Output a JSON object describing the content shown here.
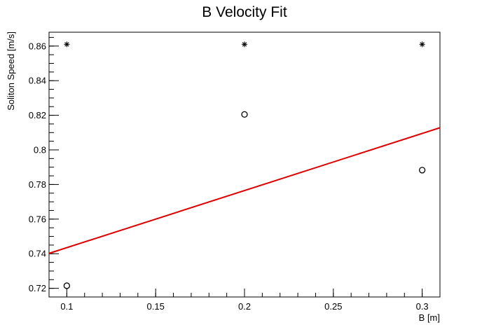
{
  "chart_data": {
    "type": "scatter",
    "title": "B Velocity Fit",
    "xlabel": "B [m]",
    "ylabel": "Soliton Speed [m/s]",
    "xlim": [
      0.09,
      0.31
    ],
    "ylim": [
      0.715,
      0.868
    ],
    "x_ticks": [
      0.1,
      0.15,
      0.2,
      0.25,
      0.3
    ],
    "x_tick_labels": [
      "0.1",
      "0.15",
      "0.2",
      "0.25",
      "0.3"
    ],
    "y_ticks": [
      0.72,
      0.74,
      0.76,
      0.78,
      0.8,
      0.82,
      0.84,
      0.86
    ],
    "y_tick_labels": [
      "0.72",
      "0.74",
      "0.76",
      "0.78",
      "0.8",
      "0.82",
      "0.84",
      "0.86"
    ],
    "grid": false,
    "series": [
      {
        "marker": "star",
        "color": "#000000",
        "x": [
          0.1,
          0.2,
          0.3
        ],
        "y": [
          0.861,
          0.861,
          0.861
        ]
      },
      {
        "marker": "open-circle",
        "color": "#000000",
        "x": [
          0.1,
          0.2,
          0.3
        ],
        "y": [
          0.7215,
          0.8205,
          0.7883
        ]
      },
      {
        "marker": "line",
        "color": "#e00000",
        "x": [
          0.09,
          0.31
        ],
        "y": [
          0.7402,
          0.8128
        ]
      }
    ]
  }
}
